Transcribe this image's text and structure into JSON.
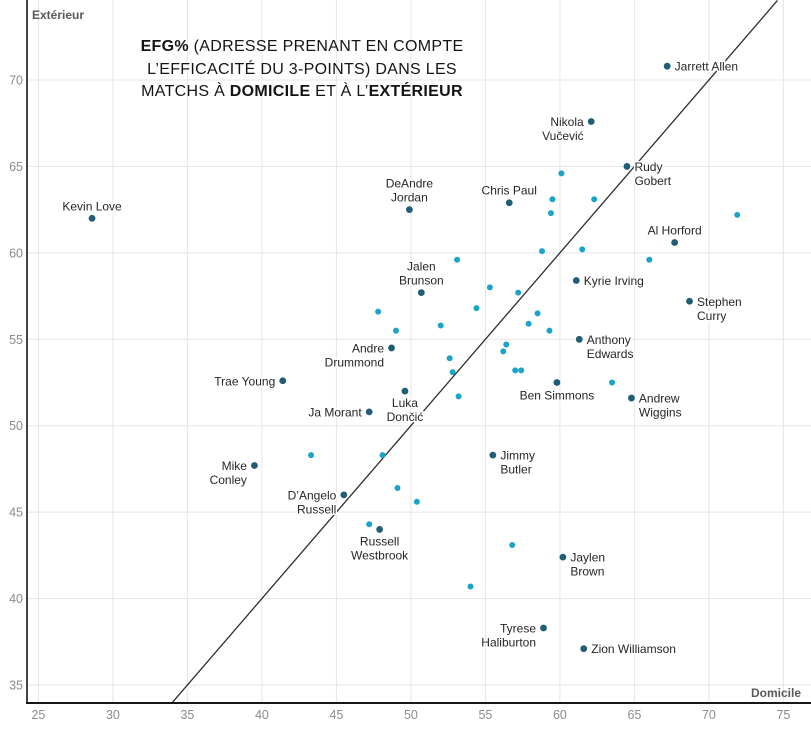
{
  "chart_data": {
    "type": "scatter",
    "title_lines": [
      [
        {
          "t": "EFG%",
          "b": true
        },
        {
          "t": " (ADRESSE PRENANT EN COMPTE",
          "b": false
        }
      ],
      [
        {
          "t": "L’EFFICACITÉ DU 3-POINTS) DANS LES",
          "b": false
        }
      ],
      [
        {
          "t": "MATCHS À ",
          "b": false
        },
        {
          "t": "DOMICILE",
          "b": true
        },
        {
          "t": " ET À L’",
          "b": false
        },
        {
          "t": "EXTÉRIEUR",
          "b": true
        }
      ]
    ],
    "xlabel": "Domicile",
    "ylabel": "Extérieur",
    "x_ticks": [
      25,
      30,
      35,
      40,
      45,
      50,
      55,
      60,
      65,
      70,
      75
    ],
    "y_ticks": [
      35,
      40,
      45,
      50,
      55,
      60,
      65,
      70
    ],
    "xlim": [
      24.2,
      76.9
    ],
    "ylim": [
      33.9,
      74.6
    ],
    "grid": true,
    "identity_line": {
      "from": 34.0,
      "to": 74.6
    },
    "colors": {
      "labeled_point": "#205D76",
      "unlabeled_point": "#1BA3C9",
      "grid": "#e5e5e5",
      "axis": "#161616",
      "tick_text": "#8b8b8b",
      "corner_text": "#595959",
      "annotation_text": "#262626",
      "identity_line": "#2e2e2e"
    },
    "series": [
      {
        "name": "labeled-players",
        "points": [
          {
            "name": "Kevin Love",
            "home": 28.6,
            "away": 62.0,
            "label_side": "above",
            "label_lines": [
              "Kevin Love"
            ]
          },
          {
            "name": "Jarrett Allen",
            "home": 67.2,
            "away": 70.8,
            "label_side": "right",
            "label_lines": [
              "Jarrett Allen"
            ]
          },
          {
            "name": "Nikola Vučević",
            "home": 62.1,
            "away": 67.6,
            "label_side": "left",
            "label_lines": [
              "Nikola",
              "Vučević"
            ]
          },
          {
            "name": "Rudy Gobert",
            "home": 64.5,
            "away": 65.0,
            "label_side": "right",
            "label_lines": [
              "Rudy",
              "Gobert"
            ]
          },
          {
            "name": "Chris Paul",
            "home": 56.6,
            "away": 62.9,
            "label_side": "above",
            "label_lines": [
              "Chris Paul"
            ]
          },
          {
            "name": "DeAndre Jordan",
            "home": 49.9,
            "away": 62.5,
            "label_side": "above",
            "label_lines": [
              "DeAndre",
              "Jordan"
            ]
          },
          {
            "name": "Al Horford",
            "home": 67.7,
            "away": 60.6,
            "label_side": "above",
            "label_lines": [
              "Al Horford"
            ]
          },
          {
            "name": "Jalen Brunson",
            "home": 50.7,
            "away": 57.7,
            "label_side": "above",
            "label_lines": [
              "Jalen",
              "Brunson"
            ]
          },
          {
            "name": "Kyrie Irving",
            "home": 61.1,
            "away": 58.4,
            "label_side": "right",
            "label_lines": [
              "Kyrie Irving"
            ]
          },
          {
            "name": "Stephen Curry",
            "home": 68.7,
            "away": 57.2,
            "label_side": "right",
            "label_lines": [
              "Stephen",
              "Curry"
            ]
          },
          {
            "name": "Anthony Edwards",
            "home": 61.3,
            "away": 55.0,
            "label_side": "right",
            "label_lines": [
              "Anthony",
              "Edwards"
            ]
          },
          {
            "name": "Andre Drummond",
            "home": 48.7,
            "away": 54.5,
            "label_side": "left",
            "label_lines": [
              "Andre",
              "Drummond"
            ]
          },
          {
            "name": "Trae Young",
            "home": 41.4,
            "away": 52.6,
            "label_side": "left",
            "label_lines": [
              "Trae Young"
            ]
          },
          {
            "name": "Ben Simmons",
            "home": 59.8,
            "away": 52.5,
            "label_side": "below",
            "label_lines": [
              "Ben Simmons"
            ]
          },
          {
            "name": "Luka Dončić",
            "home": 49.6,
            "away": 52.0,
            "label_side": "below",
            "label_lines": [
              "Luka",
              "Dončić"
            ]
          },
          {
            "name": "Andrew Wiggins",
            "home": 64.8,
            "away": 51.6,
            "label_side": "right",
            "label_lines": [
              "Andrew",
              "Wiggins"
            ]
          },
          {
            "name": "Ja Morant",
            "home": 47.2,
            "away": 50.8,
            "label_side": "left",
            "label_lines": [
              "Ja Morant"
            ]
          },
          {
            "name": "Mike Conley",
            "home": 39.5,
            "away": 47.7,
            "label_side": "left",
            "label_lines": [
              "Mike",
              "Conley"
            ]
          },
          {
            "name": "Jimmy Butler",
            "home": 55.5,
            "away": 48.3,
            "label_side": "right",
            "label_lines": [
              "Jimmy",
              "Butler"
            ]
          },
          {
            "name": "D’Angelo Russell",
            "home": 45.5,
            "away": 46.0,
            "label_side": "left",
            "label_lines": [
              "D’Angelo",
              "Russell"
            ]
          },
          {
            "name": "Russell Westbrook",
            "home": 47.9,
            "away": 44.0,
            "label_side": "below",
            "label_lines": [
              "Russell",
              "Westbrook"
            ]
          },
          {
            "name": "Jaylen Brown",
            "home": 60.2,
            "away": 42.4,
            "label_side": "right",
            "label_lines": [
              "Jaylen",
              "Brown"
            ]
          },
          {
            "name": "Tyrese Haliburton",
            "home": 58.9,
            "away": 38.3,
            "label_side": "left",
            "label_lines": [
              "Tyrese",
              "Haliburton"
            ]
          },
          {
            "name": "Zion Williamson",
            "home": 61.6,
            "away": 37.1,
            "label_side": "right",
            "label_lines": [
              "Zion Williamson"
            ]
          }
        ]
      },
      {
        "name": "unlabeled-players",
        "points": [
          [
            60.1,
            64.6
          ],
          [
            59.5,
            63.1
          ],
          [
            62.3,
            63.1
          ],
          [
            59.4,
            62.3
          ],
          [
            71.9,
            62.2
          ],
          [
            58.8,
            60.1
          ],
          [
            61.5,
            60.2
          ],
          [
            66.0,
            59.6
          ],
          [
            53.1,
            59.6
          ],
          [
            55.3,
            58.0
          ],
          [
            57.2,
            57.7
          ],
          [
            54.4,
            56.8
          ],
          [
            47.8,
            56.6
          ],
          [
            58.5,
            56.5
          ],
          [
            49.0,
            55.5
          ],
          [
            52.0,
            55.8
          ],
          [
            57.9,
            55.9
          ],
          [
            59.3,
            55.5
          ],
          [
            56.4,
            54.7
          ],
          [
            56.2,
            54.3
          ],
          [
            52.6,
            53.9
          ],
          [
            52.8,
            53.1
          ],
          [
            57.0,
            53.2
          ],
          [
            57.4,
            53.2
          ],
          [
            53.2,
            51.7
          ],
          [
            63.5,
            52.5
          ],
          [
            43.3,
            48.3
          ],
          [
            48.1,
            48.3
          ],
          [
            49.1,
            46.4
          ],
          [
            50.4,
            45.6
          ],
          [
            47.2,
            44.3
          ],
          [
            56.8,
            43.1
          ],
          [
            54.0,
            40.7
          ]
        ]
      }
    ]
  }
}
